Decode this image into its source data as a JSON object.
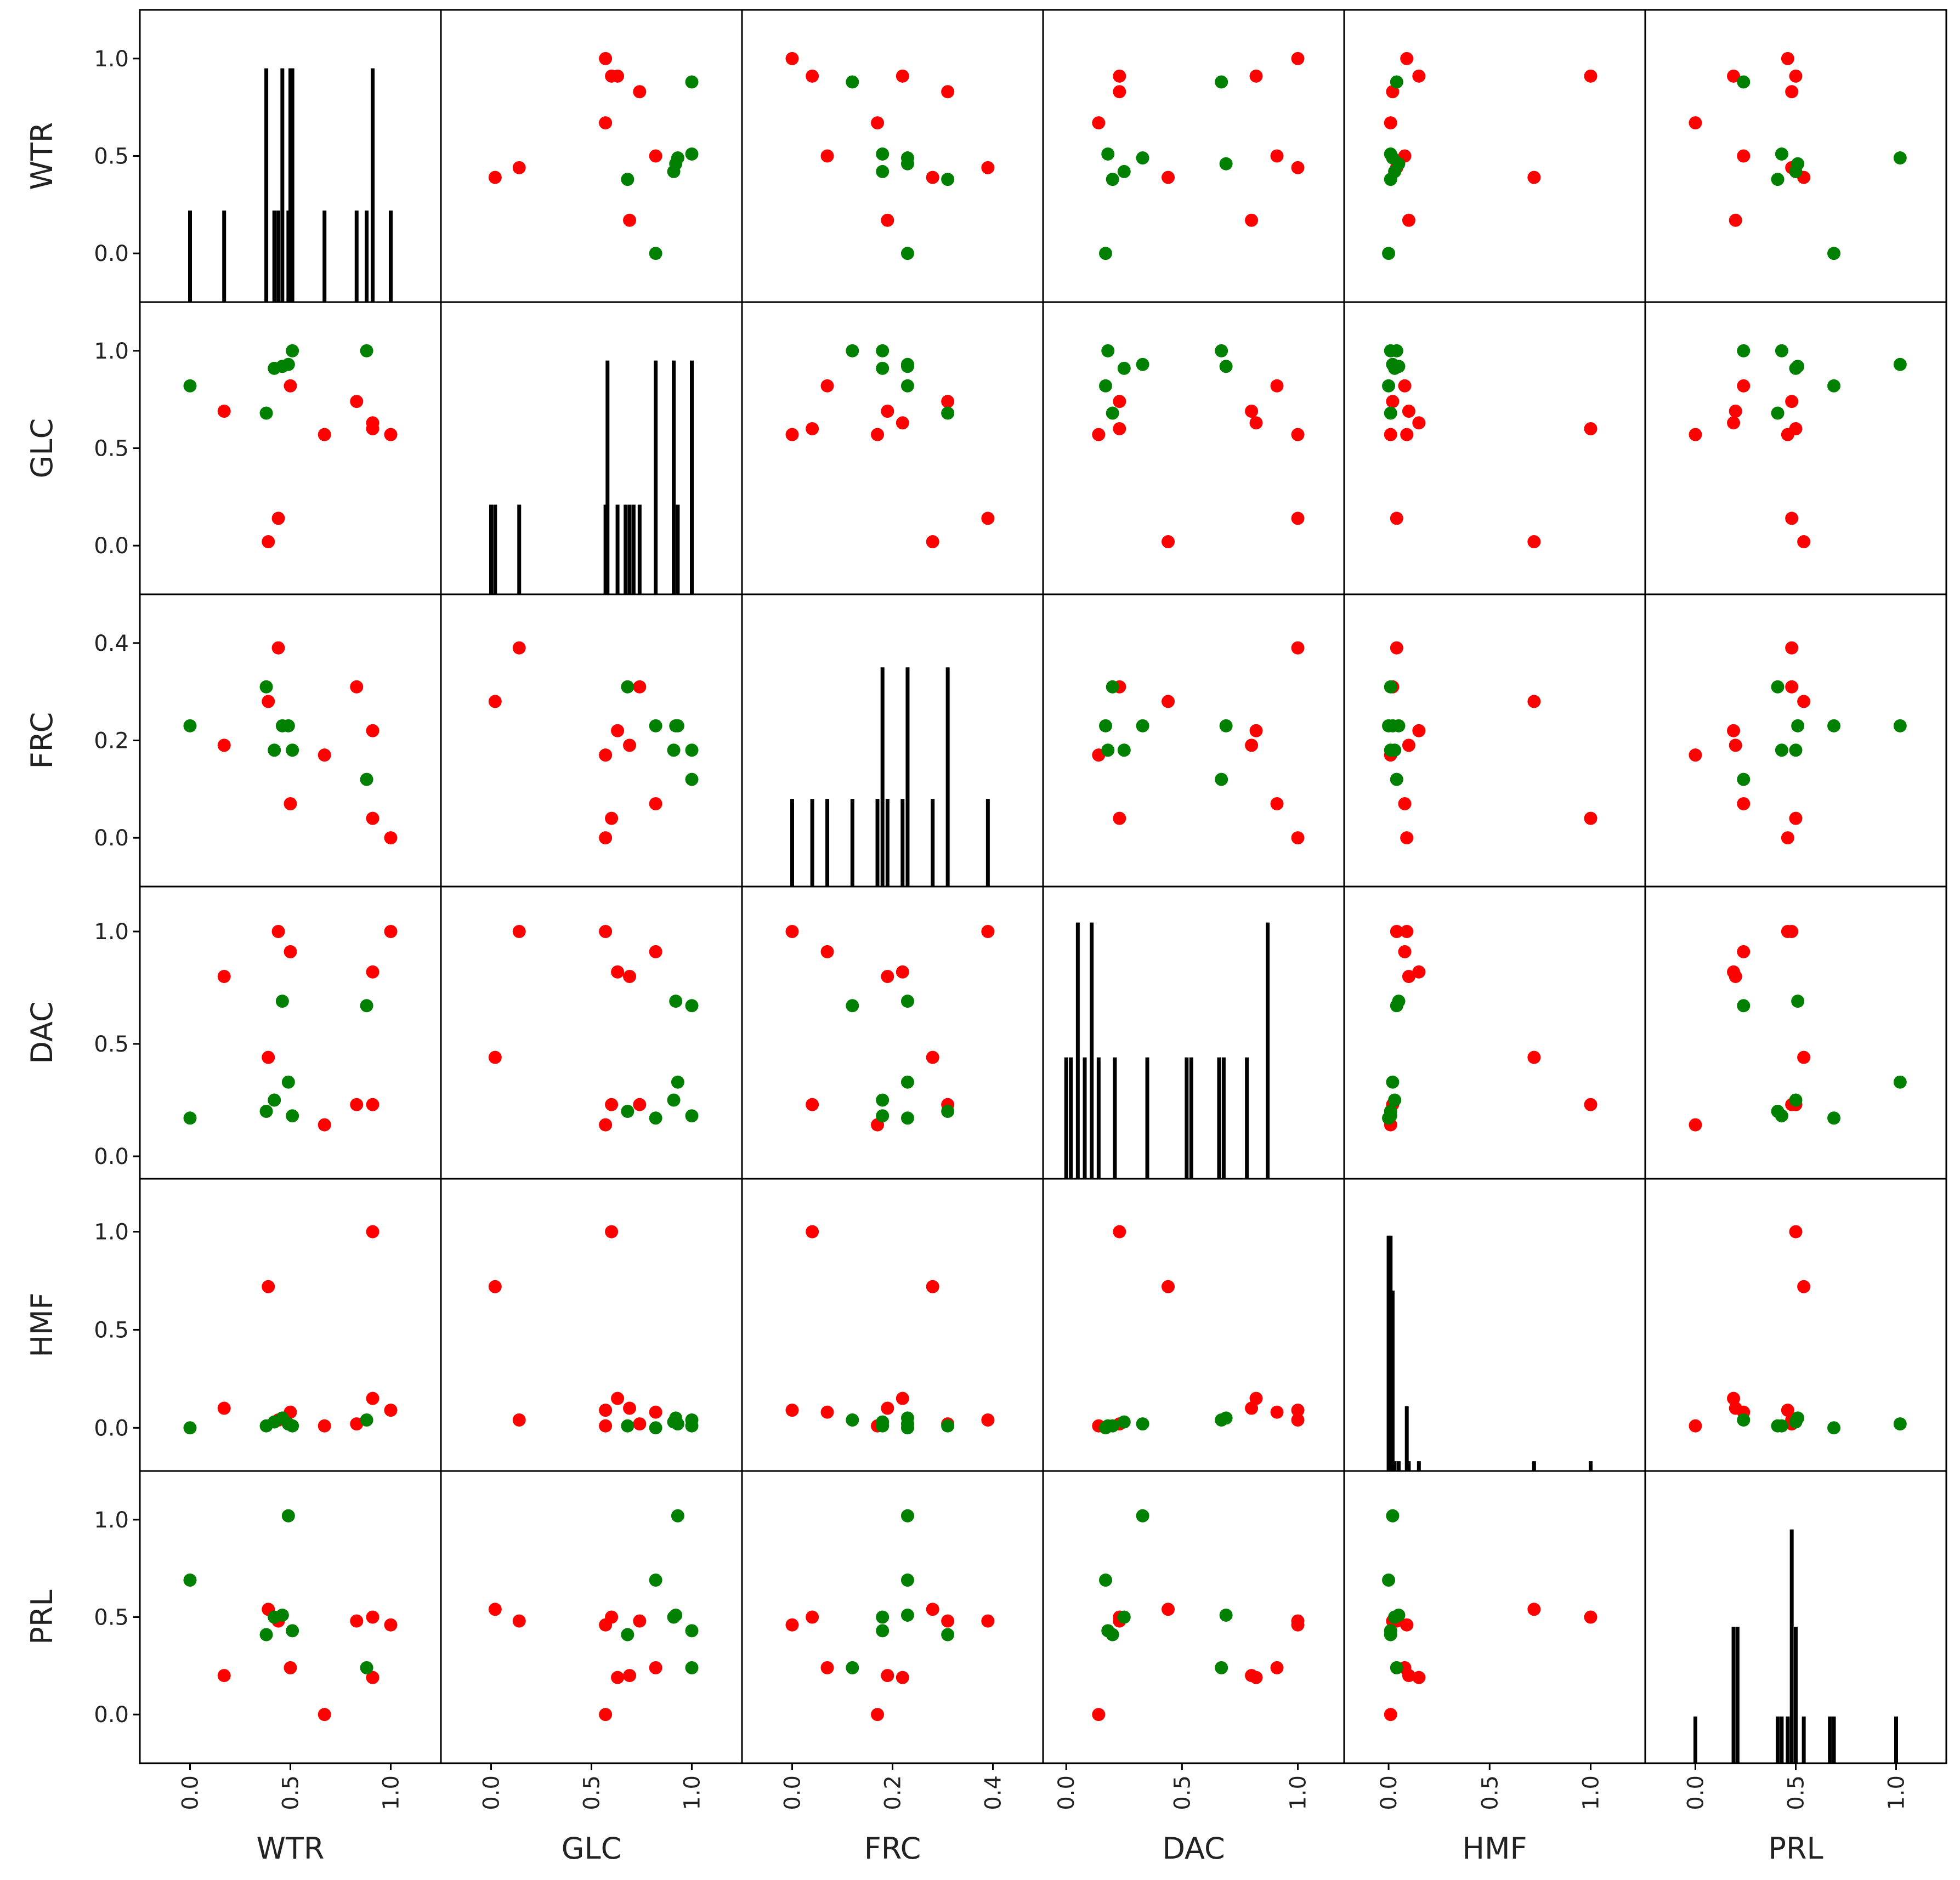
{
  "chart_data": {
    "type": "scatter",
    "title": "",
    "variables": [
      "WTR",
      "GLC",
      "FRC",
      "DAC",
      "HMF",
      "PRL"
    ],
    "colors": {
      "red": "#ff0000",
      "green": "#008000",
      "bar": "#000000"
    },
    "axis_ranges": {
      "WTR": [
        -0.25,
        1.25
      ],
      "GLC": [
        -0.25,
        1.25
      ],
      "FRC": [
        -0.1,
        0.5
      ],
      "DAC": [
        -0.1,
        1.2
      ],
      "HMF": [
        -0.22,
        1.27
      ],
      "PRL": [
        -0.25,
        1.25
      ]
    },
    "ticks": {
      "WTR": {
        "values": [
          0,
          0.5,
          1
        ],
        "labels": [
          "0.0",
          "0.5",
          "1.0"
        ]
      },
      "GLC": {
        "values": [
          0,
          0.5,
          1
        ],
        "labels": [
          "0.0",
          "0.5",
          "1.0"
        ]
      },
      "FRC": {
        "values": [
          0,
          0.2,
          0.4
        ],
        "labels": [
          "0.0",
          "0.2",
          "0.4"
        ]
      },
      "DAC": {
        "values": [
          0,
          0.5,
          1
        ],
        "labels": [
          "0.0",
          "0.5",
          "1.0"
        ]
      },
      "HMF": {
        "values": [
          0,
          0.5,
          1
        ],
        "labels": [
          "0.0",
          "0.5",
          "1.0"
        ]
      },
      "PRL": {
        "values": [
          0,
          0.5,
          1
        ],
        "labels": [
          "0.0",
          "0.5",
          "1.0"
        ]
      }
    },
    "points": [
      {
        "class": "red",
        "WTR": 1.0,
        "GLC": 0.57,
        "FRC": 0.0,
        "DAC": 1.0,
        "HMF": 0.09,
        "PRL": 0.46
      },
      {
        "class": "red",
        "WTR": 0.91,
        "GLC": 0.6,
        "FRC": 0.04,
        "DAC": 0.23,
        "HMF": 1.0,
        "PRL": 0.5
      },
      {
        "class": "red",
        "WTR": 0.5,
        "GLC": 0.82,
        "FRC": 0.07,
        "DAC": 0.91,
        "HMF": 0.08,
        "PRL": 0.24
      },
      {
        "class": "red",
        "WTR": 0.39,
        "GLC": 0.02,
        "FRC": 0.28,
        "DAC": 0.44,
        "HMF": 0.72,
        "PRL": 0.54
      },
      {
        "class": "red",
        "WTR": 0.44,
        "GLC": 0.14,
        "FRC": 0.39,
        "DAC": 1.0,
        "HMF": 0.04,
        "PRL": 0.48
      },
      {
        "class": "red",
        "WTR": 0.17,
        "GLC": 0.69,
        "FRC": 0.19,
        "DAC": 0.8,
        "HMF": 0.1,
        "PRL": 0.2
      },
      {
        "class": "red",
        "WTR": 0.67,
        "GLC": 0.57,
        "FRC": 0.17,
        "DAC": 0.14,
        "HMF": 0.01,
        "PRL": 0.0
      },
      {
        "class": "red",
        "WTR": 0.83,
        "GLC": 0.74,
        "FRC": 0.31,
        "DAC": 0.23,
        "HMF": 0.02,
        "PRL": 0.48
      },
      {
        "class": "red",
        "WTR": 0.91,
        "GLC": 0.63,
        "FRC": 0.22,
        "DAC": 0.82,
        "HMF": 0.15,
        "PRL": 0.19
      },
      {
        "class": "green",
        "WTR": 0.0,
        "GLC": 0.82,
        "FRC": 0.23,
        "DAC": 0.17,
        "HMF": 0.0,
        "PRL": 0.69
      },
      {
        "class": "green",
        "WTR": 0.38,
        "GLC": 0.68,
        "FRC": 0.31,
        "DAC": 0.2,
        "HMF": 0.01,
        "PRL": 0.41
      },
      {
        "class": "green",
        "WTR": 0.42,
        "GLC": 0.91,
        "FRC": 0.18,
        "DAC": 0.25,
        "HMF": 0.03,
        "PRL": 0.5
      },
      {
        "class": "green",
        "WTR": 0.46,
        "GLC": 0.92,
        "FRC": 0.23,
        "DAC": 0.69,
        "HMF": 0.05,
        "PRL": 0.51
      },
      {
        "class": "green",
        "WTR": 0.49,
        "GLC": 0.93,
        "FRC": 0.23,
        "DAC": 0.33,
        "HMF": 0.02,
        "PRL": 1.02
      },
      {
        "class": "green",
        "WTR": 0.51,
        "GLC": 1.0,
        "FRC": 0.18,
        "DAC": 0.18,
        "HMF": 0.01,
        "PRL": 0.43
      },
      {
        "class": "green",
        "WTR": 0.88,
        "GLC": 1.0,
        "FRC": 0.12,
        "DAC": 0.67,
        "HMF": 0.04,
        "PRL": 0.24
      }
    ],
    "histograms": {
      "WTR": [
        {
          "x": 0.0,
          "h": 0.47
        },
        {
          "x": 0.17,
          "h": 0.47
        },
        {
          "x": 0.38,
          "h": 1.2
        },
        {
          "x": 0.42,
          "h": 0.47
        },
        {
          "x": 0.44,
          "h": 0.47
        },
        {
          "x": 0.46,
          "h": 1.2
        },
        {
          "x": 0.49,
          "h": 0.47
        },
        {
          "x": 0.5,
          "h": 1.2
        },
        {
          "x": 0.51,
          "h": 1.2
        },
        {
          "x": 0.67,
          "h": 0.47
        },
        {
          "x": 0.83,
          "h": 0.47
        },
        {
          "x": 0.88,
          "h": 0.47
        },
        {
          "x": 0.91,
          "h": 1.2
        },
        {
          "x": 1.0,
          "h": 0.47
        }
      ],
      "GLC": [
        {
          "x": 0.0,
          "h": 0.46
        },
        {
          "x": 0.02,
          "h": 0.46
        },
        {
          "x": 0.14,
          "h": 0.46
        },
        {
          "x": 0.57,
          "h": 0.46
        },
        {
          "x": 0.58,
          "h": 1.2
        },
        {
          "x": 0.63,
          "h": 0.46
        },
        {
          "x": 0.67,
          "h": 0.46
        },
        {
          "x": 0.69,
          "h": 0.46
        },
        {
          "x": 0.71,
          "h": 0.46
        },
        {
          "x": 0.74,
          "h": 0.46
        },
        {
          "x": 0.82,
          "h": 1.2
        },
        {
          "x": 0.91,
          "h": 1.2
        },
        {
          "x": 0.93,
          "h": 0.46
        },
        {
          "x": 1.0,
          "h": 1.2
        }
      ],
      "FRC": [
        {
          "x": 0.0,
          "h": 0.18
        },
        {
          "x": 0.04,
          "h": 0.18
        },
        {
          "x": 0.07,
          "h": 0.18
        },
        {
          "x": 0.12,
          "h": 0.18
        },
        {
          "x": 0.17,
          "h": 0.18
        },
        {
          "x": 0.18,
          "h": 0.45
        },
        {
          "x": 0.19,
          "h": 0.18
        },
        {
          "x": 0.22,
          "h": 0.18
        },
        {
          "x": 0.23,
          "h": 0.45
        },
        {
          "x": 0.28,
          "h": 0.18
        },
        {
          "x": 0.31,
          "h": 0.45
        },
        {
          "x": 0.39,
          "h": 0.18
        }
      ],
      "DAC": [
        {
          "x": 0.0,
          "h": 0.54
        },
        {
          "x": 0.02,
          "h": 0.54
        },
        {
          "x": 0.05,
          "h": 1.14
        },
        {
          "x": 0.08,
          "h": 0.54
        },
        {
          "x": 0.11,
          "h": 1.14
        },
        {
          "x": 0.14,
          "h": 0.54
        },
        {
          "x": 0.21,
          "h": 0.54
        },
        {
          "x": 0.35,
          "h": 0.54
        },
        {
          "x": 0.52,
          "h": 0.54
        },
        {
          "x": 0.54,
          "h": 0.54
        },
        {
          "x": 0.66,
          "h": 0.54
        },
        {
          "x": 0.68,
          "h": 0.54
        },
        {
          "x": 0.78,
          "h": 0.54
        },
        {
          "x": 0.87,
          "h": 1.14
        }
      ],
      "HMF": [
        {
          "x": 0.0,
          "h": 1.2
        },
        {
          "x": 0.01,
          "h": 1.2
        },
        {
          "x": 0.02,
          "h": 0.92
        },
        {
          "x": 0.03,
          "h": 0.05
        },
        {
          "x": 0.05,
          "h": 0.05
        },
        {
          "x": 0.09,
          "h": 0.33
        },
        {
          "x": 0.1,
          "h": 0.05
        },
        {
          "x": 0.15,
          "h": 0.05
        },
        {
          "x": 0.72,
          "h": 0.05
        },
        {
          "x": 1.0,
          "h": 0.05
        }
      ],
      "PRL": [
        {
          "x": 0.0,
          "h": 0.24
        },
        {
          "x": 0.19,
          "h": 0.7
        },
        {
          "x": 0.21,
          "h": 0.7
        },
        {
          "x": 0.41,
          "h": 0.24
        },
        {
          "x": 0.43,
          "h": 0.24
        },
        {
          "x": 0.46,
          "h": 0.24
        },
        {
          "x": 0.48,
          "h": 1.2
        },
        {
          "x": 0.5,
          "h": 0.7
        },
        {
          "x": 0.54,
          "h": 0.24
        },
        {
          "x": 0.67,
          "h": 0.24
        },
        {
          "x": 0.69,
          "h": 0.24
        },
        {
          "x": 1.0,
          "h": 0.24
        }
      ]
    }
  }
}
